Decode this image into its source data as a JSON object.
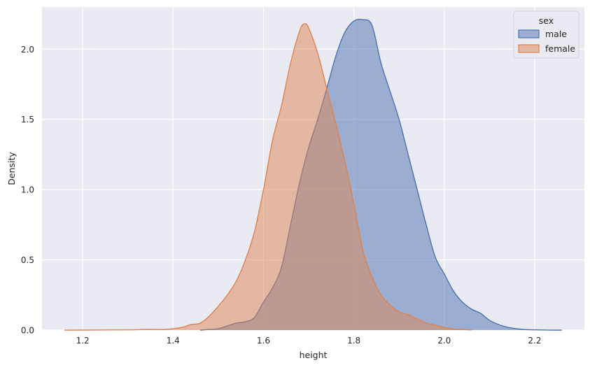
{
  "chart_data": {
    "type": "area",
    "title": "",
    "xlabel": "height",
    "ylabel": "Density",
    "xlim": [
      1.11,
      2.31
    ],
    "ylim": [
      0,
      2.3
    ],
    "xticks": [
      1.2,
      1.4,
      1.6,
      1.8,
      2.0,
      2.2
    ],
    "xtick_labels": [
      "1.2",
      "1.4",
      "1.6",
      "1.8",
      "2.0",
      "2.2"
    ],
    "yticks": [
      0.0,
      0.5,
      1.0,
      1.5,
      2.0
    ],
    "ytick_labels": [
      "0.0",
      "0.5",
      "1.0",
      "1.5",
      "2.0"
    ],
    "grid": true,
    "legend": {
      "title": "sex",
      "placement": "top-right"
    },
    "series": [
      {
        "name": "male",
        "color": "#4C72B0",
        "x": [
          1.46,
          1.48,
          1.5,
          1.52,
          1.54,
          1.56,
          1.58,
          1.6,
          1.62,
          1.64,
          1.66,
          1.68,
          1.7,
          1.72,
          1.74,
          1.76,
          1.78,
          1.8,
          1.82,
          1.84,
          1.86,
          1.88,
          1.9,
          1.92,
          1.94,
          1.96,
          1.98,
          2.0,
          2.02,
          2.04,
          2.06,
          2.08,
          2.1,
          2.12,
          2.14,
          2.16,
          2.18,
          2.2,
          2.22,
          2.24,
          2.26
        ],
        "y": [
          0.0,
          0.005,
          0.01,
          0.03,
          0.05,
          0.06,
          0.09,
          0.2,
          0.3,
          0.45,
          0.75,
          1.05,
          1.3,
          1.5,
          1.72,
          1.95,
          2.12,
          2.2,
          2.21,
          2.17,
          1.9,
          1.7,
          1.5,
          1.25,
          1.0,
          0.75,
          0.52,
          0.4,
          0.28,
          0.2,
          0.15,
          0.12,
          0.07,
          0.04,
          0.02,
          0.01,
          0.004,
          0.002,
          0.001,
          0.0,
          0.0
        ]
      },
      {
        "name": "female",
        "color": "#DD8452",
        "x": [
          1.16,
          1.3,
          1.34,
          1.38,
          1.4,
          1.42,
          1.44,
          1.46,
          1.48,
          1.5,
          1.52,
          1.54,
          1.56,
          1.58,
          1.6,
          1.62,
          1.64,
          1.66,
          1.68,
          1.69,
          1.7,
          1.72,
          1.74,
          1.76,
          1.78,
          1.8,
          1.82,
          1.84,
          1.86,
          1.88,
          1.9,
          1.92,
          1.94,
          1.96,
          1.98,
          2.0,
          2.02,
          2.04,
          2.06
        ],
        "y": [
          0.0,
          0.002,
          0.006,
          0.005,
          0.01,
          0.02,
          0.04,
          0.05,
          0.1,
          0.17,
          0.25,
          0.35,
          0.5,
          0.7,
          1.0,
          1.35,
          1.6,
          1.9,
          2.13,
          2.18,
          2.15,
          1.97,
          1.72,
          1.47,
          1.2,
          0.9,
          0.57,
          0.38,
          0.25,
          0.18,
          0.13,
          0.11,
          0.08,
          0.05,
          0.035,
          0.02,
          0.008,
          0.004,
          0.001
        ]
      }
    ]
  }
}
